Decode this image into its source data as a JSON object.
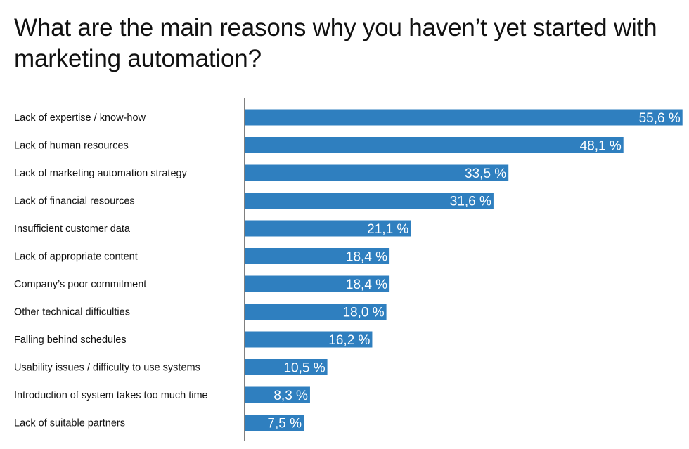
{
  "chart_data": {
    "type": "bar",
    "orientation": "horizontal",
    "title": "What are the main reasons why you haven’t yet started with marketing automation?",
    "categories": [
      "Lack of expertise / know-how",
      "Lack of human resources",
      "Lack of marketing automation strategy",
      "Lack of financial resources",
      "Insufficient customer data",
      "Lack of appropriate content",
      "Company’s poor commitment",
      "Other technical difficulties",
      "Falling behind schedules",
      "Usability issues / difficulty to use systems",
      "Introduction of system takes too much time",
      "Lack of suitable partners"
    ],
    "values": [
      55.6,
      48.1,
      33.5,
      31.6,
      21.1,
      18.4,
      18.4,
      18.0,
      16.2,
      10.5,
      8.3,
      7.5
    ],
    "data_labels": [
      "55,6 %",
      "48,1 %",
      "33,5 %",
      "31,6 %",
      "21,1 %",
      "18,4 %",
      "18,4 %",
      "18,0 %",
      "16,2 %",
      "10,5 %",
      "8,3 %",
      "7,5 %"
    ],
    "unit": "%",
    "color": "#2f7fbf",
    "grid": false
  }
}
